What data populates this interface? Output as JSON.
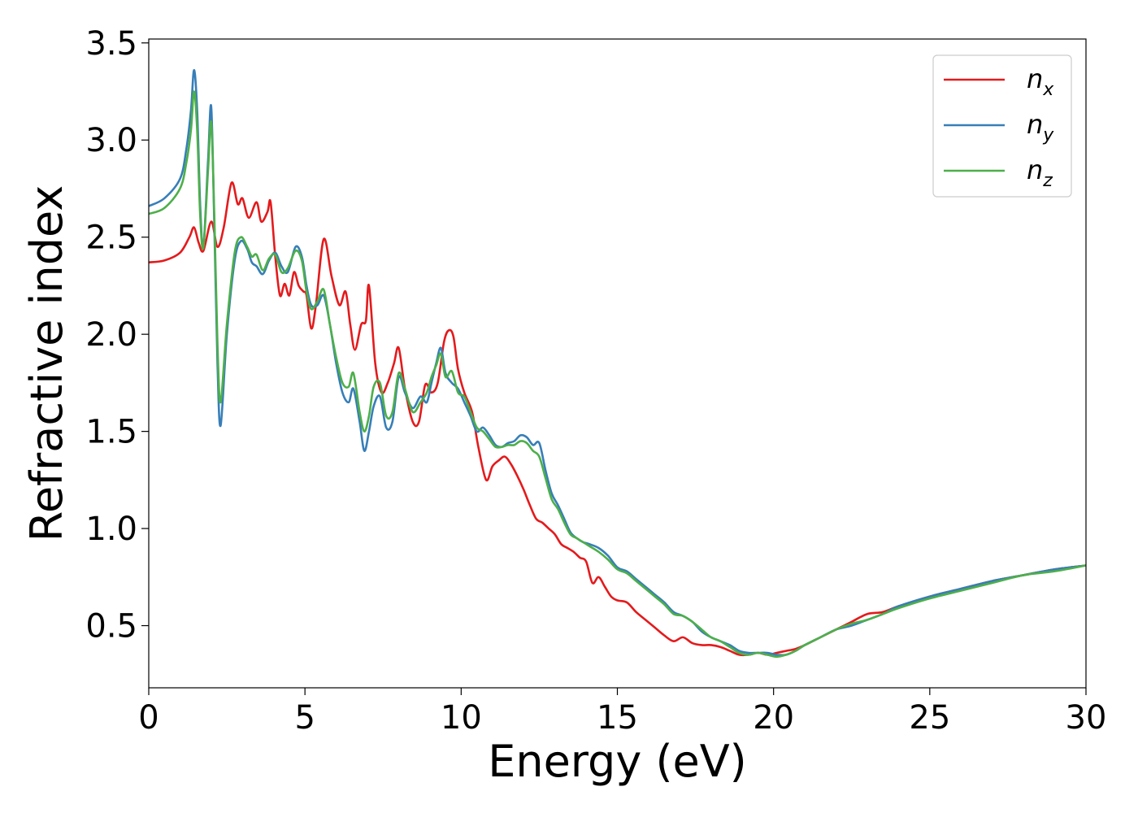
{
  "chart_data": {
    "type": "line",
    "xlabel": "Energy (eV)",
    "ylabel": "Refractive index",
    "xlim": [
      0,
      30
    ],
    "ylim": [
      0.18,
      3.52
    ],
    "xticks": [
      0,
      5,
      10,
      15,
      20,
      25,
      30
    ],
    "xtick_labels": [
      "0",
      "5",
      "10",
      "15",
      "20",
      "25",
      "30"
    ],
    "yticks": [
      0.5,
      1.0,
      1.5,
      2.0,
      2.5,
      3.0,
      3.5
    ],
    "ytick_labels": [
      "0.5",
      "1.0",
      "1.5",
      "2.0",
      "2.5",
      "3.0",
      "3.5"
    ],
    "grid": false,
    "legend_position": "top-right",
    "series": [
      {
        "name": "n_x",
        "label_base": "n",
        "label_sub": "x",
        "color": "#e41a1c",
        "x": [
          0,
          0.5,
          1.0,
          1.3,
          1.45,
          1.6,
          1.75,
          2.0,
          2.2,
          2.4,
          2.65,
          2.85,
          3.0,
          3.2,
          3.45,
          3.6,
          3.8,
          3.9,
          4.05,
          4.2,
          4.35,
          4.5,
          4.65,
          4.8,
          4.95,
          5.05,
          5.2,
          5.35,
          5.6,
          5.85,
          6.1,
          6.3,
          6.45,
          6.6,
          6.8,
          6.95,
          7.05,
          7.25,
          7.45,
          7.65,
          7.85,
          8.0,
          8.2,
          8.45,
          8.65,
          8.85,
          9.05,
          9.25,
          9.45,
          9.6,
          9.75,
          9.9,
          10.1,
          10.35,
          10.55,
          10.8,
          11.0,
          11.2,
          11.4,
          11.6,
          11.8,
          12.0,
          12.2,
          12.4,
          12.6,
          12.8,
          13.0,
          13.2,
          13.4,
          13.6,
          13.8,
          14.0,
          14.2,
          14.4,
          14.6,
          14.8,
          15.0,
          15.3,
          15.6,
          15.9,
          16.2,
          16.5,
          16.8,
          17.1,
          17.4,
          17.7,
          18.0,
          18.3,
          18.6,
          18.9,
          19.2,
          19.5,
          19.8,
          20.1,
          20.4,
          20.7,
          21.0,
          21.5,
          22.0,
          22.5,
          23.0,
          23.5,
          24.0,
          25.0,
          26.0,
          27.0,
          28.0,
          29.0,
          30.0
        ],
        "y": [
          2.37,
          2.38,
          2.42,
          2.5,
          2.55,
          2.47,
          2.43,
          2.58,
          2.45,
          2.55,
          2.78,
          2.67,
          2.7,
          2.6,
          2.68,
          2.58,
          2.63,
          2.68,
          2.4,
          2.2,
          2.26,
          2.2,
          2.32,
          2.25,
          2.22,
          2.2,
          2.03,
          2.15,
          2.49,
          2.3,
          2.15,
          2.22,
          2.05,
          1.92,
          2.05,
          2.07,
          2.25,
          1.85,
          1.7,
          1.75,
          1.85,
          1.93,
          1.72,
          1.55,
          1.55,
          1.74,
          1.7,
          1.75,
          1.96,
          2.02,
          1.99,
          1.82,
          1.7,
          1.6,
          1.42,
          1.25,
          1.32,
          1.35,
          1.37,
          1.33,
          1.27,
          1.2,
          1.12,
          1.05,
          1.03,
          1.0,
          0.97,
          0.92,
          0.9,
          0.88,
          0.85,
          0.83,
          0.72,
          0.75,
          0.7,
          0.65,
          0.63,
          0.62,
          0.57,
          0.53,
          0.49,
          0.45,
          0.42,
          0.44,
          0.41,
          0.4,
          0.4,
          0.39,
          0.37,
          0.35,
          0.35,
          0.36,
          0.35,
          0.36,
          0.37,
          0.38,
          0.4,
          0.44,
          0.48,
          0.52,
          0.56,
          0.57,
          0.6,
          0.65,
          0.69,
          0.73,
          0.76,
          0.79,
          0.81
        ]
      },
      {
        "name": "n_y",
        "label_base": "n",
        "label_sub": "y",
        "color": "#377eb8",
        "x": [
          0,
          0.5,
          1.0,
          1.2,
          1.35,
          1.45,
          1.55,
          1.65,
          1.75,
          1.9,
          2.0,
          2.1,
          2.2,
          2.3,
          2.5,
          2.75,
          2.95,
          3.15,
          3.3,
          3.45,
          3.65,
          3.85,
          4.05,
          4.25,
          4.45,
          4.7,
          4.9,
          5.05,
          5.2,
          5.4,
          5.6,
          5.8,
          6.0,
          6.2,
          6.4,
          6.55,
          6.75,
          6.9,
          7.05,
          7.2,
          7.4,
          7.6,
          7.8,
          8.0,
          8.2,
          8.45,
          8.7,
          8.9,
          9.05,
          9.2,
          9.35,
          9.5,
          9.7,
          9.9,
          10.1,
          10.3,
          10.5,
          10.7,
          10.9,
          11.1,
          11.3,
          11.5,
          11.7,
          11.9,
          12.1,
          12.3,
          12.5,
          12.7,
          12.9,
          13.1,
          13.3,
          13.5,
          13.7,
          13.9,
          14.1,
          14.4,
          14.7,
          15.0,
          15.3,
          15.6,
          15.9,
          16.2,
          16.5,
          16.8,
          17.1,
          17.4,
          17.7,
          18.0,
          18.3,
          18.6,
          18.9,
          19.2,
          19.5,
          19.8,
          20.1,
          20.4,
          20.7,
          21.0,
          21.5,
          22.0,
          22.5,
          23.0,
          23.5,
          24.0,
          25.0,
          26.0,
          27.0,
          28.0,
          29.0,
          30.0
        ],
        "y": [
          2.66,
          2.7,
          2.8,
          2.95,
          3.15,
          3.36,
          3.15,
          2.65,
          2.45,
          2.9,
          3.17,
          2.55,
          1.85,
          1.53,
          2.0,
          2.38,
          2.48,
          2.44,
          2.37,
          2.35,
          2.31,
          2.38,
          2.42,
          2.35,
          2.32,
          2.45,
          2.4,
          2.25,
          2.15,
          2.15,
          2.2,
          2.05,
          1.85,
          1.7,
          1.65,
          1.72,
          1.55,
          1.4,
          1.5,
          1.63,
          1.68,
          1.52,
          1.55,
          1.78,
          1.7,
          1.62,
          1.68,
          1.65,
          1.75,
          1.85,
          1.93,
          1.8,
          1.75,
          1.72,
          1.65,
          1.58,
          1.5,
          1.52,
          1.48,
          1.43,
          1.42,
          1.44,
          1.45,
          1.48,
          1.47,
          1.43,
          1.44,
          1.3,
          1.18,
          1.12,
          1.05,
          0.98,
          0.95,
          0.93,
          0.92,
          0.9,
          0.86,
          0.8,
          0.78,
          0.74,
          0.7,
          0.66,
          0.62,
          0.57,
          0.55,
          0.52,
          0.47,
          0.44,
          0.42,
          0.4,
          0.37,
          0.36,
          0.36,
          0.36,
          0.35,
          0.35,
          0.37,
          0.4,
          0.44,
          0.48,
          0.5,
          0.53,
          0.56,
          0.6,
          0.65,
          0.69,
          0.73,
          0.76,
          0.79,
          0.81
        ]
      },
      {
        "name": "n_z",
        "label_base": "n",
        "label_sub": "z",
        "color": "#4daf4a",
        "x": [
          0,
          0.5,
          1.0,
          1.2,
          1.35,
          1.45,
          1.55,
          1.65,
          1.75,
          1.9,
          2.0,
          2.1,
          2.2,
          2.3,
          2.5,
          2.75,
          2.95,
          3.15,
          3.3,
          3.45,
          3.65,
          3.85,
          4.05,
          4.25,
          4.45,
          4.7,
          4.9,
          5.05,
          5.2,
          5.4,
          5.6,
          5.8,
          6.0,
          6.2,
          6.4,
          6.55,
          6.75,
          6.9,
          7.05,
          7.2,
          7.4,
          7.6,
          7.8,
          8.0,
          8.2,
          8.45,
          8.7,
          8.9,
          9.05,
          9.2,
          9.35,
          9.5,
          9.7,
          9.9,
          10.1,
          10.3,
          10.5,
          10.7,
          10.9,
          11.1,
          11.3,
          11.5,
          11.7,
          11.9,
          12.1,
          12.3,
          12.5,
          12.7,
          12.9,
          13.1,
          13.3,
          13.5,
          13.7,
          13.9,
          14.1,
          14.4,
          14.7,
          15.0,
          15.3,
          15.6,
          15.9,
          16.2,
          16.5,
          16.8,
          17.1,
          17.4,
          17.7,
          18.0,
          18.3,
          18.6,
          18.9,
          19.2,
          19.5,
          19.8,
          20.1,
          20.4,
          20.7,
          21.0,
          21.5,
          22.0,
          22.5,
          23.0,
          23.5,
          24.0,
          25.0,
          26.0,
          27.0,
          28.0,
          29.0,
          30.0
        ],
        "y": [
          2.62,
          2.65,
          2.75,
          2.88,
          3.05,
          3.25,
          3.05,
          2.6,
          2.45,
          2.85,
          3.09,
          2.6,
          1.95,
          1.65,
          2.05,
          2.42,
          2.5,
          2.45,
          2.4,
          2.41,
          2.33,
          2.39,
          2.41,
          2.32,
          2.34,
          2.43,
          2.38,
          2.22,
          2.13,
          2.17,
          2.23,
          2.05,
          1.88,
          1.75,
          1.73,
          1.8,
          1.6,
          1.5,
          1.58,
          1.73,
          1.75,
          1.58,
          1.6,
          1.8,
          1.72,
          1.6,
          1.65,
          1.7,
          1.78,
          1.84,
          1.9,
          1.78,
          1.81,
          1.7,
          1.68,
          1.6,
          1.52,
          1.5,
          1.46,
          1.42,
          1.42,
          1.43,
          1.43,
          1.45,
          1.44,
          1.4,
          1.37,
          1.26,
          1.15,
          1.1,
          1.03,
          0.97,
          0.95,
          0.93,
          0.91,
          0.88,
          0.84,
          0.79,
          0.77,
          0.73,
          0.69,
          0.65,
          0.61,
          0.56,
          0.55,
          0.52,
          0.48,
          0.44,
          0.42,
          0.39,
          0.36,
          0.35,
          0.36,
          0.35,
          0.34,
          0.35,
          0.37,
          0.4,
          0.44,
          0.48,
          0.51,
          0.53,
          0.56,
          0.59,
          0.64,
          0.68,
          0.72,
          0.76,
          0.78,
          0.81
        ]
      }
    ]
  }
}
